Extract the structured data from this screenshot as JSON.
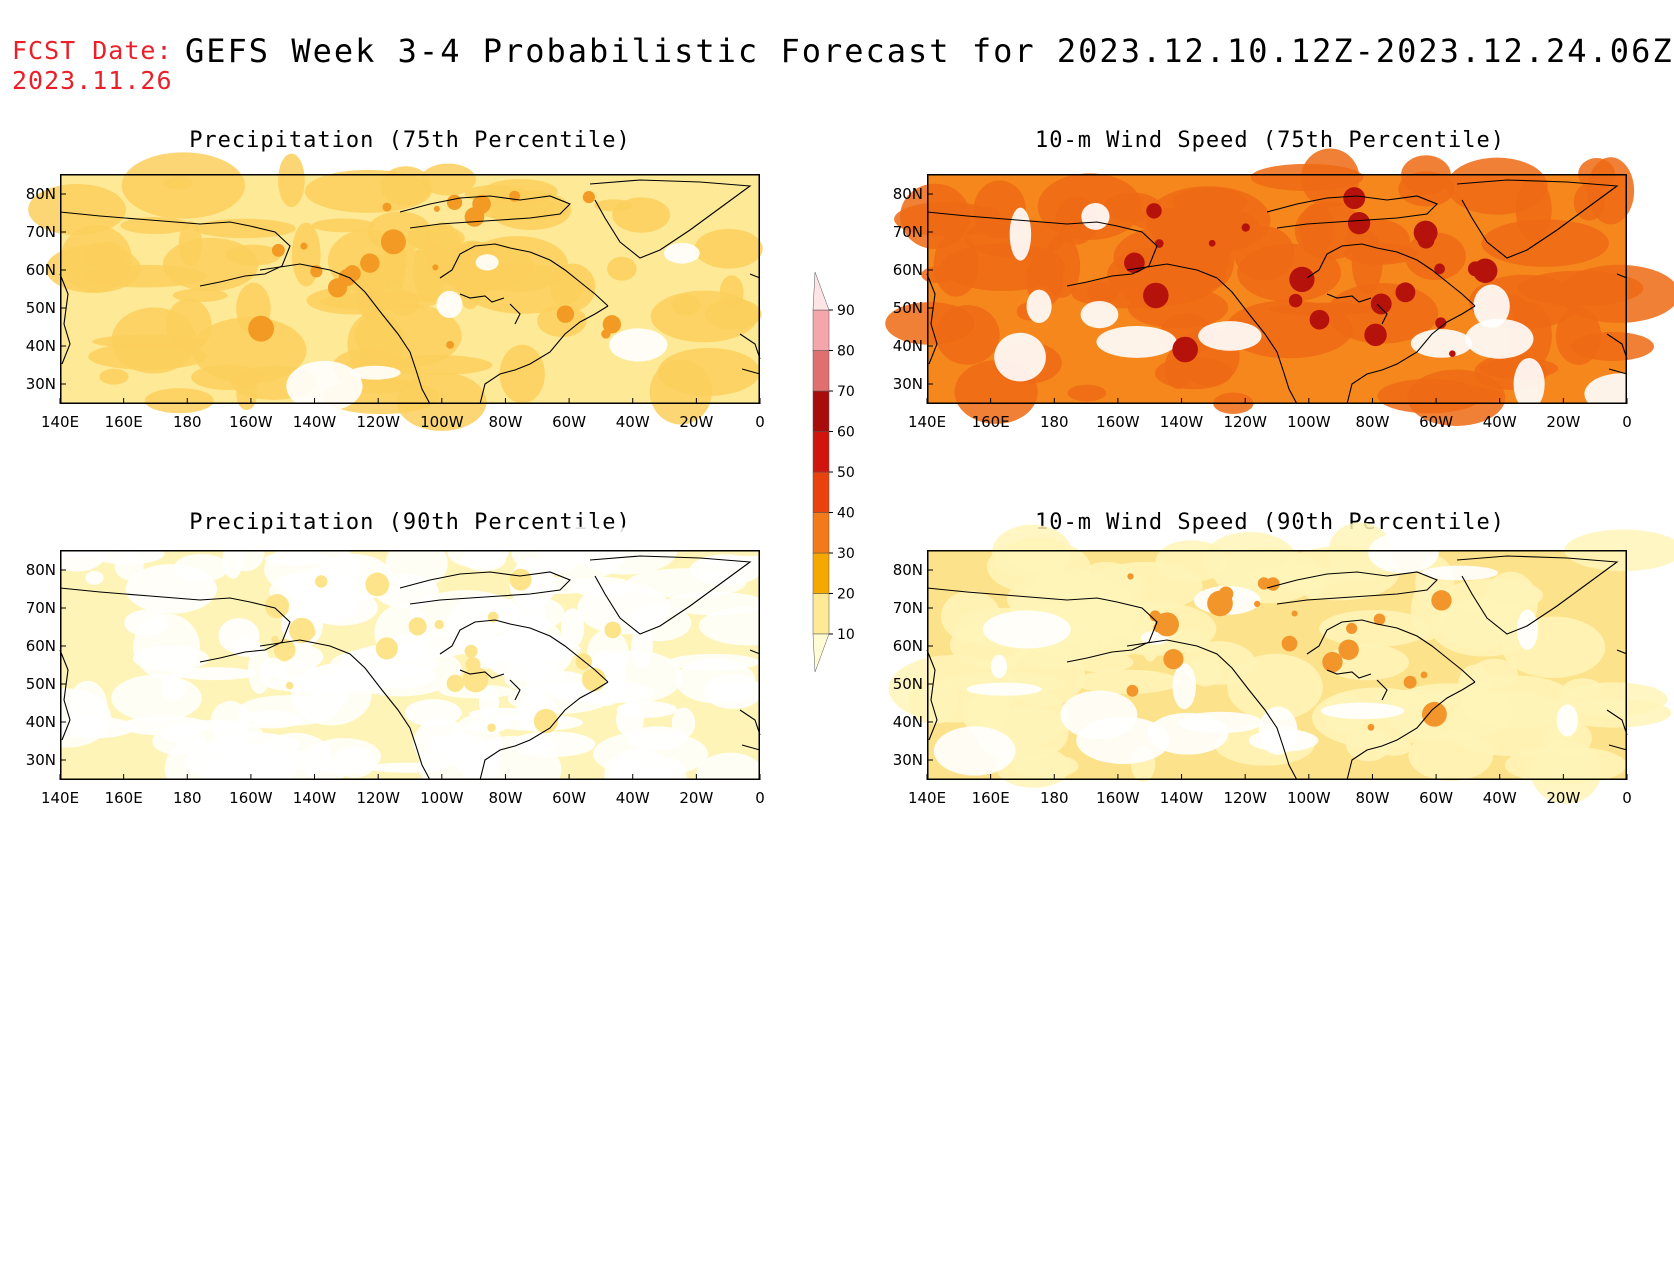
{
  "header": {
    "fcst_label": "FCST Date:",
    "fcst_date": "2023.11.26",
    "title": "GEFS Week 3-4 Probabilistic Forecast for 2023.12.10.12Z-2023.12.24.06Z"
  },
  "axes": {
    "x_ticks": [
      "140E",
      "160E",
      "180",
      "160W",
      "140W",
      "120W",
      "100W",
      "80W",
      "60W",
      "40W",
      "20W",
      "0"
    ],
    "y_ticks": [
      "80N",
      "70N",
      "60N",
      "50N",
      "40N",
      "30N"
    ]
  },
  "panels": [
    {
      "id": "precip75",
      "title": "Precipitation (75th Percentile)",
      "base": "#fde996",
      "patch": "#fbcf5c",
      "hot": "#f29a24",
      "white": 0.05
    },
    {
      "id": "wind75",
      "title": "10-m Wind Speed (75th Percentile)",
      "base": "#f5871c",
      "patch": "#ef6a14",
      "hot": "#b5120c",
      "white": 0.1
    },
    {
      "id": "precip90",
      "title": "Precipitation (90th Percentile)",
      "base": "#fff4b8",
      "patch": "#ffffff",
      "hot": "#fde38a",
      "white": 0.45
    },
    {
      "id": "wind90",
      "title": "10-m Wind Speed (90th Percentile)",
      "base": "#fde28c",
      "patch": "#fff4b8",
      "hot": "#f2952a",
      "white": 0.15
    }
  ],
  "colorbar": {
    "levels": [
      "10",
      "20",
      "30",
      "40",
      "50",
      "60",
      "70",
      "80",
      "90"
    ],
    "colors": [
      "#fffbd5",
      "#fde996",
      "#f5a800",
      "#f27a18",
      "#e8420f",
      "#d0150f",
      "#a80c0c",
      "#e07070",
      "#f4a6ab",
      "#fde4e6"
    ]
  }
}
